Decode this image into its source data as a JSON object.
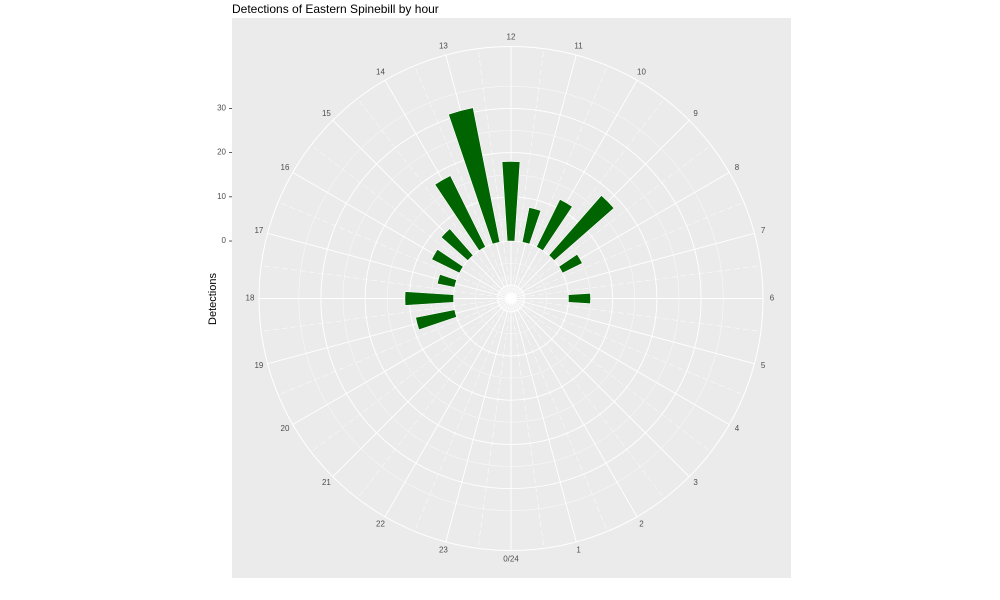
{
  "chart_data": {
    "type": "bar",
    "coord": "polar",
    "title": "Detections of Eastern Spinebill by hour",
    "ylabel": "Detections",
    "xlabel": "",
    "x_ticks": [
      "0/24",
      "1",
      "2",
      "3",
      "4",
      "5",
      "6",
      "7",
      "8",
      "9",
      "10",
      "11",
      "12",
      "13",
      "14",
      "15",
      "16",
      "17",
      "18",
      "19",
      "20",
      "21",
      "22",
      "23"
    ],
    "y_ticks": [
      "0",
      "10",
      "20",
      "30"
    ],
    "ylim": [
      -13,
      44
    ],
    "grid": true,
    "bar_color": "#006400",
    "panel_color": "#ebebeb",
    "hours": [
      6,
      6.5,
      7,
      7.5,
      8,
      8.5,
      9,
      9.5,
      10,
      10.5,
      11,
      11.5,
      12,
      12.5,
      13,
      13.5,
      14,
      14.5,
      15,
      15.5,
      16,
      16.5,
      17,
      17.5,
      18,
      18.5,
      19
    ],
    "values": [
      5,
      0,
      0,
      0,
      5,
      0,
      18,
      0,
      12,
      0,
      8,
      0,
      18,
      0,
      31,
      0,
      18,
      0,
      8,
      0,
      7,
      0,
      4,
      0,
      11,
      0,
      9
    ]
  }
}
